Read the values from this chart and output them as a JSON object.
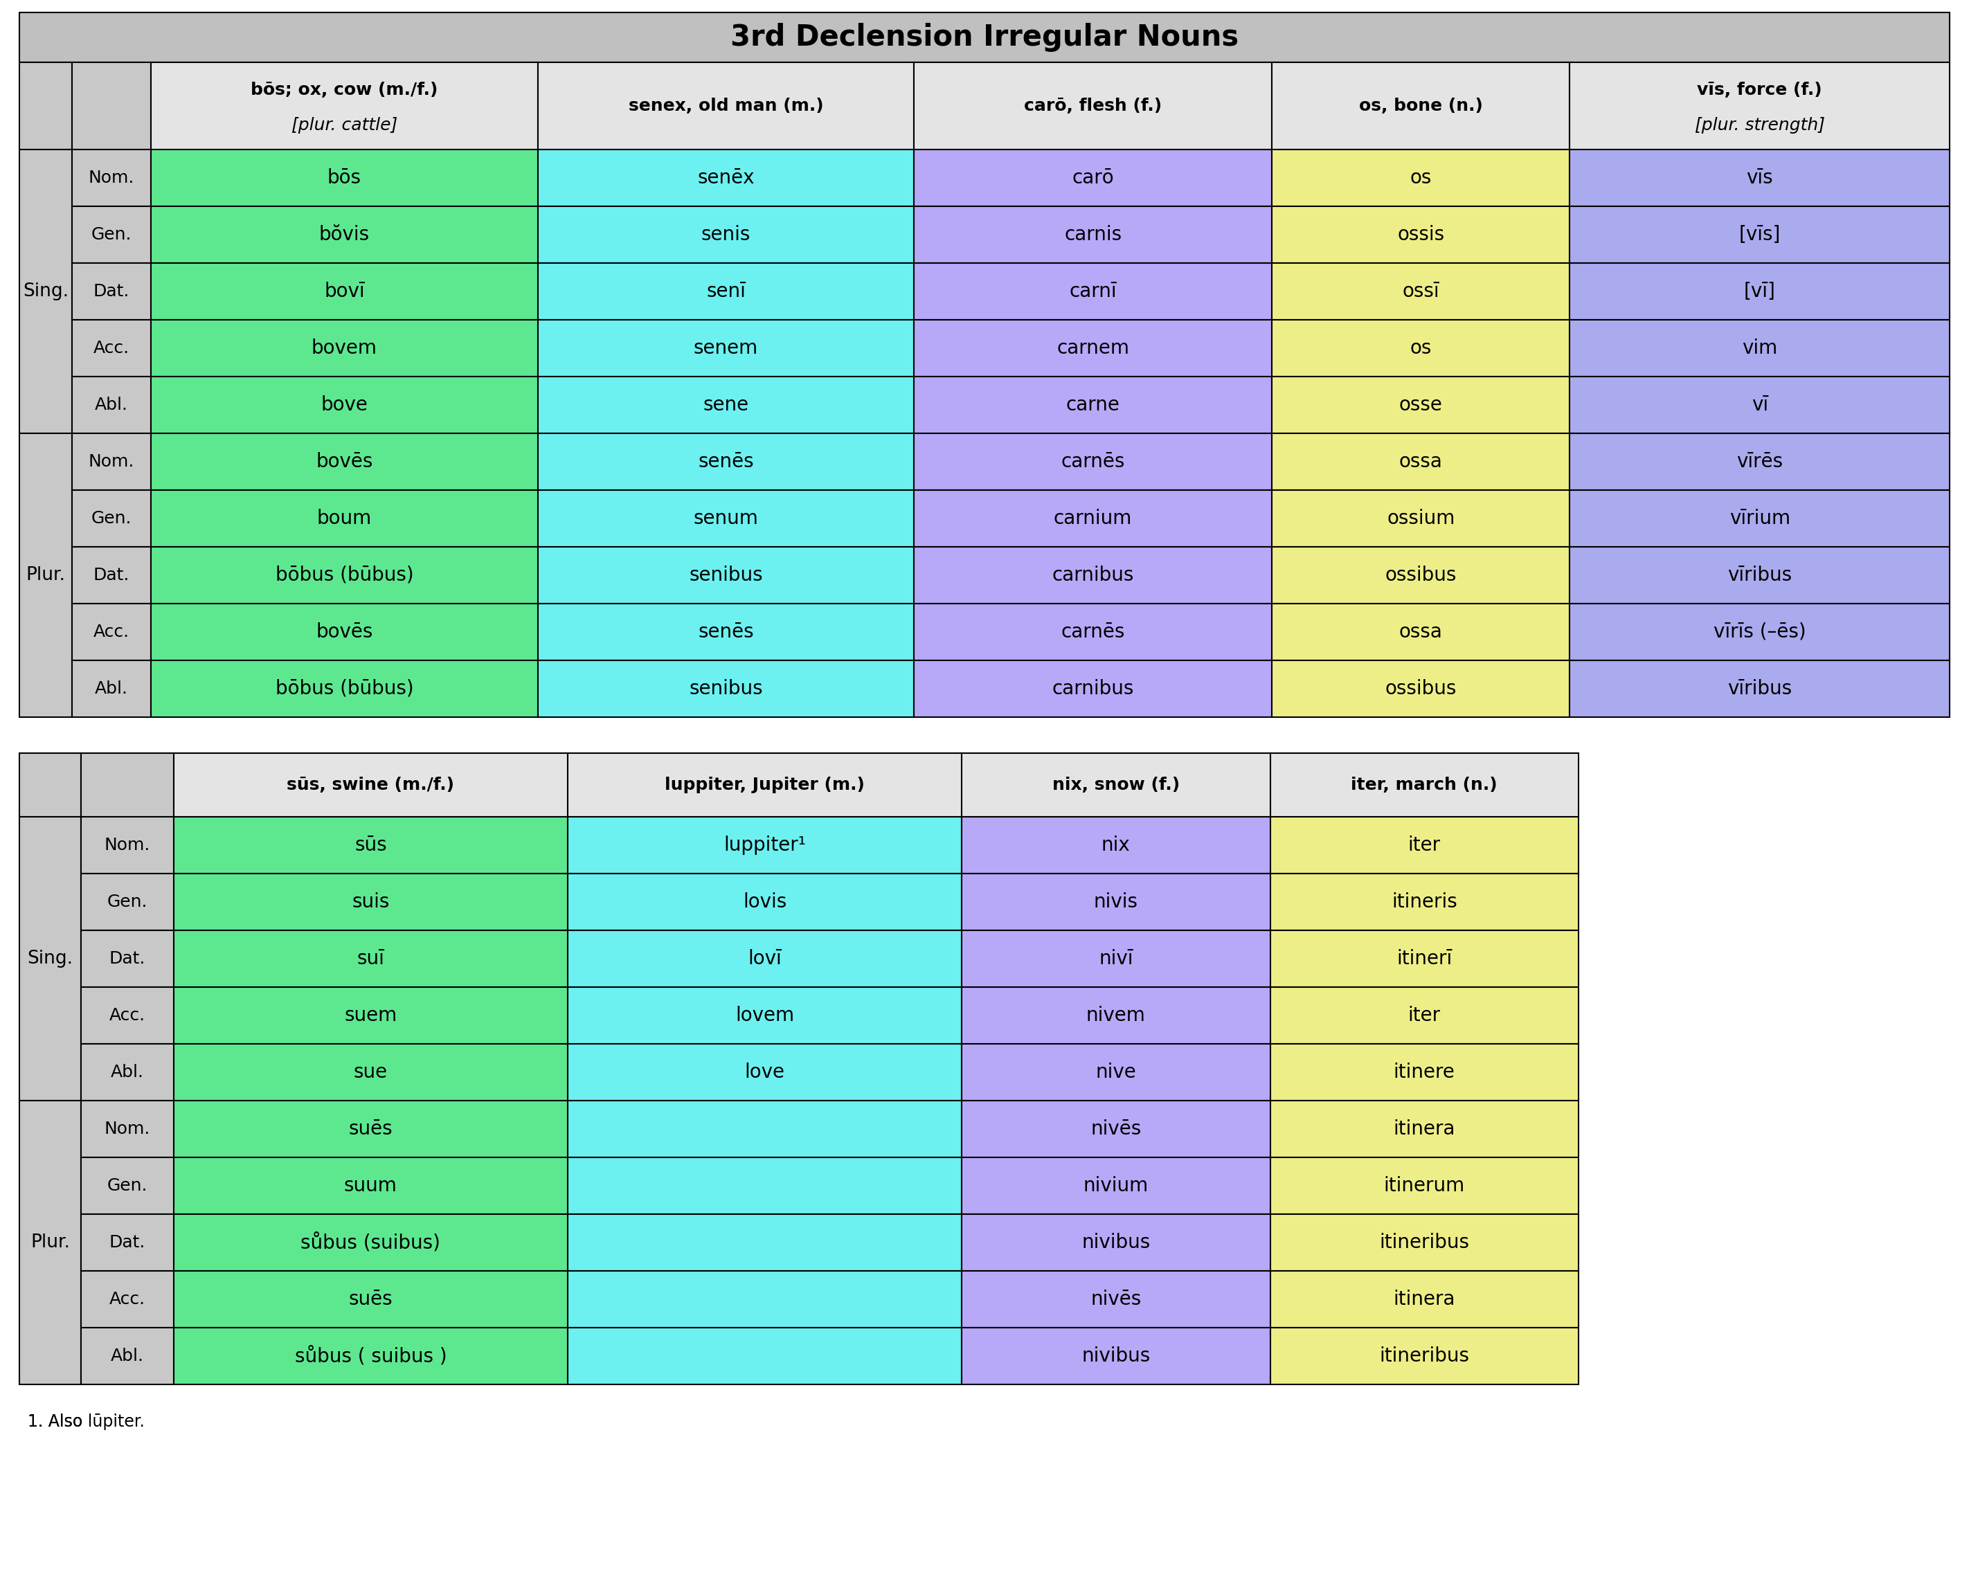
{
  "title": "3rd Declension Irregular Nouns",
  "C_GREEN": "#5de890",
  "C_CYAN": "#6cf0f0",
  "C_PURPLE": "#b8a8f8",
  "C_YELLOW": "#eeee88",
  "C_BLUE": "#aaaaee",
  "C_GRAY": "#c8c8c8",
  "C_LGRAY": "#e4e4e4",
  "C_TITLE": "#c0c0c0",
  "t1_sing": [
    [
      "Nom.",
      "bōs",
      "senēx",
      "carō",
      "os",
      "vīs"
    ],
    [
      "Gen.",
      "bŏvis",
      "senis",
      "carnis",
      "ossis",
      "[vīs]"
    ],
    [
      "Dat.",
      "bovī",
      "senī",
      "carnī",
      "ossī",
      "[vī]"
    ],
    [
      "Acc.",
      "bovem",
      "senem",
      "carnem",
      "os",
      "vim"
    ],
    [
      "Abl.",
      "bove",
      "sene",
      "carne",
      "osse",
      "vī"
    ]
  ],
  "t1_plur": [
    [
      "Nom.",
      "bovēs",
      "senēs",
      "carnēs",
      "ossa",
      "vīrēs"
    ],
    [
      "Gen.",
      "boum",
      "senum",
      "carnium",
      "ossium",
      "vīrium"
    ],
    [
      "Dat.",
      "bōbus (būbus)",
      "senibus",
      "carnibus",
      "ossibus",
      "vīribus"
    ],
    [
      "Acc.",
      "bovēs",
      "senēs",
      "carnēs",
      "ossa",
      "vīrīs (–ēs)"
    ],
    [
      "Abl.",
      "bōbus (būbus)",
      "senibus",
      "carnibus",
      "ossibus",
      "vīribus"
    ]
  ],
  "t1_ends": [
    [
      "s",
      "ex",
      "ō",
      "s",
      "īs"
    ],
    [
      "is",
      "is",
      "is",
      "is",
      ""
    ],
    [
      "ī",
      "ī",
      "ī",
      "ī",
      ""
    ],
    [
      "em",
      "em",
      "em",
      "s",
      "im"
    ],
    [
      "e",
      "e",
      "e",
      "se",
      "ī"
    ],
    [
      "ēs",
      "ēs",
      "ēs",
      "a",
      "ēs"
    ],
    [
      "um",
      "um",
      "ium",
      "ium",
      "ium"
    ],
    [
      "bus (būbus)",
      "ibus",
      "ibus",
      "ibus",
      "ibus"
    ],
    [
      "ēs",
      "ēs",
      "ēs",
      "a",
      "īs (–ēs)"
    ],
    [
      "bus (būbus)",
      "ibus",
      "ibus",
      "ibus",
      "ibus"
    ]
  ],
  "t2_sing": [
    [
      "Nom.",
      "sūs",
      "luppiter¹",
      "nix",
      "iter"
    ],
    [
      "Gen.",
      "suis",
      "lovis",
      "nivis",
      "itineris"
    ],
    [
      "Dat.",
      "suī",
      "lovī",
      "nivī",
      "itinerī"
    ],
    [
      "Acc.",
      "suem",
      "lovem",
      "nivem",
      "iter"
    ],
    [
      "Abl.",
      "sue",
      "love",
      "nive",
      "itinere"
    ]
  ],
  "t2_plur": [
    [
      "Nom.",
      "suēs",
      "",
      "nivēs",
      "itinera"
    ],
    [
      "Gen.",
      "suum",
      "",
      "nivium",
      "itinerum"
    ],
    [
      "Dat.",
      "sůbus (suibus)",
      "",
      "nivibus",
      "itineribus"
    ],
    [
      "Acc.",
      "suēs",
      "",
      "nivēs",
      "itinera"
    ],
    [
      "Abl.",
      "sůbus ( suibus )",
      "",
      "nivibus",
      "itineribus"
    ]
  ],
  "t2_ends": [
    [
      "s",
      "iter",
      "x",
      "r"
    ],
    [
      "is",
      "is",
      "is",
      "is"
    ],
    [
      "ī",
      "ī",
      "ī",
      "ī"
    ],
    [
      "em",
      "em",
      "em",
      "r"
    ],
    [
      "e",
      "e",
      "e",
      "e"
    ],
    [
      "ēs",
      "",
      "ēs",
      "a"
    ],
    [
      "um",
      "",
      "ium",
      "um"
    ],
    [
      "bus (suibus)",
      "",
      "ibus",
      "ibus"
    ],
    [
      "ēs",
      "",
      "ēs",
      "a"
    ],
    [
      "bus ( suibus )",
      "",
      "ibus",
      "ibus"
    ]
  ]
}
